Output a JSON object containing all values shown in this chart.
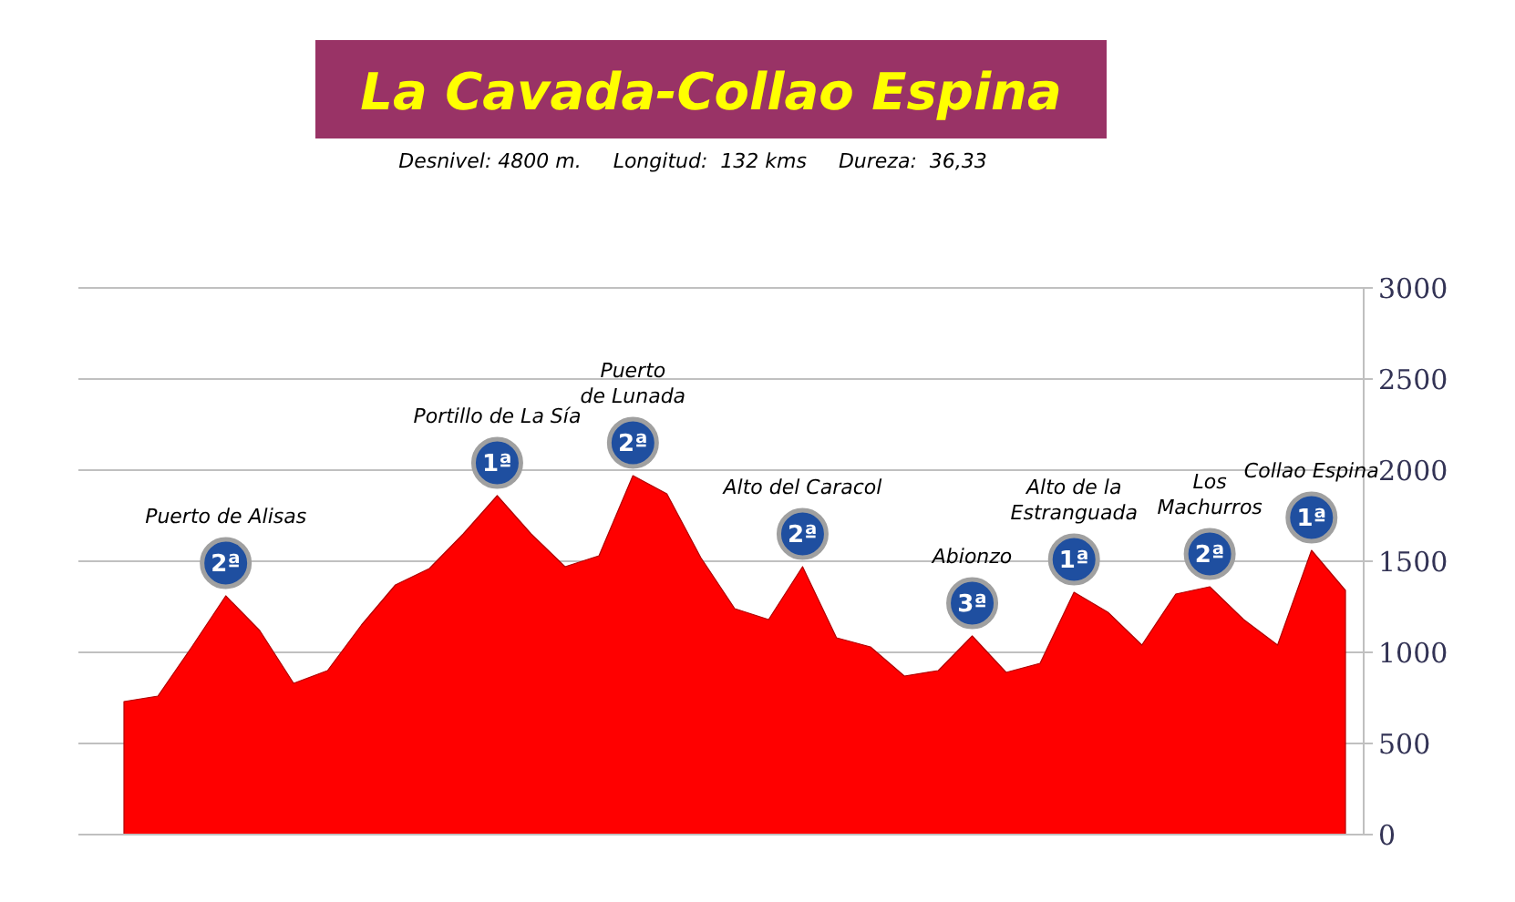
{
  "chart_data": {
    "type": "area",
    "title": "La Cavada-Collao Espina",
    "subtitle": "Desnivel: 4800 m.     Longitud:  132 kms     Dureza:  36,33",
    "categories": [
      null,
      null,
      null,
      null,
      null,
      null,
      null,
      null,
      null,
      null,
      null,
      null,
      null,
      null,
      null,
      null,
      null,
      null,
      null,
      null,
      null,
      null,
      null,
      null,
      null,
      null,
      null,
      null,
      null,
      null,
      null,
      null,
      null,
      null,
      null,
      null,
      null
    ],
    "series": [
      {
        "color": "#ff0000",
        "values": [
          730,
          760,
          1030,
          1310,
          1120,
          830,
          900,
          1150,
          1370,
          1460,
          1650,
          1860,
          1650,
          1470,
          1530,
          1970,
          1870,
          1520,
          1240,
          1180,
          1470,
          1080,
          1030,
          870,
          900,
          1090,
          890,
          940,
          1330,
          1220,
          1040,
          1320,
          1360,
          1180,
          1040,
          1560,
          1340
        ]
      }
    ],
    "ylim": [
      0,
      3000
    ],
    "yticks": [
      0,
      500,
      1000,
      1500,
      2000,
      2500,
      3000
    ],
    "grid": "y",
    "tick_labels": "y",
    "annotations": [
      "Puerto de Alisas",
      "2ª",
      "Portillo de La Sía",
      "1ª",
      "Puerto\nde Lunada",
      "2ª",
      "Alto del Caracol",
      "2ª",
      "Abionzo",
      "3ª",
      "Alto de la\nEstranguada",
      "1ª",
      "Los\nMachurros",
      "2ª",
      "Collao Espina",
      "1ª"
    ]
  }
}
